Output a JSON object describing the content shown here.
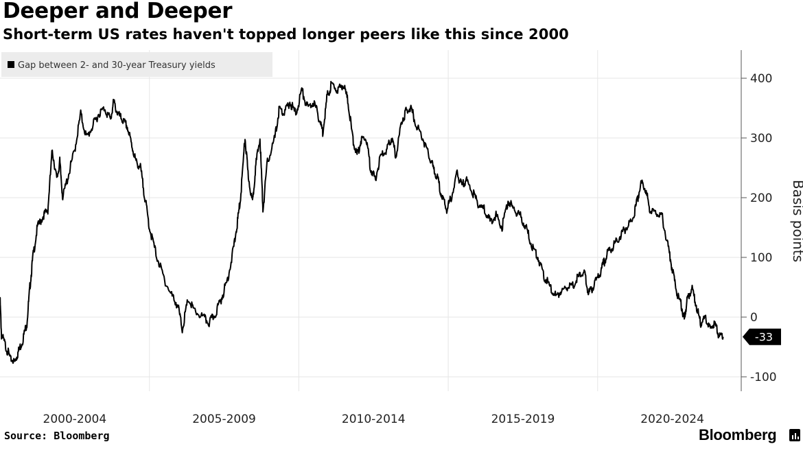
{
  "title": "Deeper and Deeper",
  "subtitle": "Short-term US rates haven't topped longer peers like this since 2000",
  "source": "Source: Bloomberg",
  "brand": "Bloomberg",
  "brand_icon": "bloomberg-terminal-icon",
  "colors": {
    "line": "#000000",
    "grid": "#e6e6e6",
    "legend_bg": "#ececec",
    "axis": "#555555"
  },
  "chart_data": {
    "type": "line",
    "title": "Deeper and Deeper",
    "subtitle": "Short-term US rates haven't topped longer peers like this since 2000",
    "ylabel": "Basis points",
    "y_axis_side": "right",
    "ylim": [
      -125,
      450
    ],
    "yticks": [
      -100,
      0,
      100,
      200,
      300,
      400
    ],
    "x_range": [
      2000.0,
      2024.3
    ],
    "x_ticks": [
      2000,
      2005,
      2010,
      2015,
      2020
    ],
    "x_tick_labels": [
      "2000-2004",
      "2005-2009",
      "2010-2014",
      "2015-2019",
      "2020-2024"
    ],
    "grid": true,
    "legend": {
      "placement": "top-left",
      "entries": [
        "Gap between 2- and 30-year Treasury yields"
      ]
    },
    "last_value_label": "-33",
    "series": [
      {
        "name": "Gap between 2- and 30-year Treasury yields",
        "color": "#000000",
        "points": [
          [
            2000.0,
            30
          ],
          [
            2000.05,
            -30
          ],
          [
            2000.2,
            -50
          ],
          [
            2000.35,
            -70
          ],
          [
            2000.5,
            -75
          ],
          [
            2000.6,
            -60
          ],
          [
            2000.75,
            -40
          ],
          [
            2000.9,
            -10
          ],
          [
            2001.0,
            50
          ],
          [
            2001.1,
            100
          ],
          [
            2001.25,
            150
          ],
          [
            2001.45,
            170
          ],
          [
            2001.6,
            180
          ],
          [
            2001.75,
            280
          ],
          [
            2001.9,
            230
          ],
          [
            2002.0,
            260
          ],
          [
            2002.1,
            200
          ],
          [
            2002.3,
            240
          ],
          [
            2002.5,
            280
          ],
          [
            2002.7,
            340
          ],
          [
            2002.9,
            300
          ],
          [
            2003.1,
            320
          ],
          [
            2003.3,
            340
          ],
          [
            2003.5,
            350
          ],
          [
            2003.7,
            330
          ],
          [
            2003.8,
            360
          ],
          [
            2003.95,
            340
          ],
          [
            2004.1,
            330
          ],
          [
            2004.25,
            320
          ],
          [
            2004.4,
            290
          ],
          [
            2004.55,
            260
          ],
          [
            2004.7,
            250
          ],
          [
            2004.85,
            200
          ],
          [
            2005.0,
            150
          ],
          [
            2005.2,
            110
          ],
          [
            2005.45,
            70
          ],
          [
            2005.7,
            40
          ],
          [
            2005.95,
            20
          ],
          [
            2006.1,
            -20
          ],
          [
            2006.3,
            30
          ],
          [
            2006.5,
            10
          ],
          [
            2006.8,
            0
          ],
          [
            2007.0,
            -10
          ],
          [
            2007.2,
            5
          ],
          [
            2007.4,
            30
          ],
          [
            2007.6,
            60
          ],
          [
            2007.8,
            110
          ],
          [
            2007.95,
            160
          ],
          [
            2008.05,
            200
          ],
          [
            2008.2,
            300
          ],
          [
            2008.3,
            240
          ],
          [
            2008.45,
            190
          ],
          [
            2008.55,
            250
          ],
          [
            2008.7,
            300
          ],
          [
            2008.8,
            180
          ],
          [
            2008.95,
            260
          ],
          [
            2009.2,
            300
          ],
          [
            2009.35,
            350
          ],
          [
            2009.5,
            340
          ],
          [
            2009.7,
            360
          ],
          [
            2009.9,
            340
          ],
          [
            2010.1,
            380
          ],
          [
            2010.3,
            350
          ],
          [
            2010.5,
            360
          ],
          [
            2010.7,
            330
          ],
          [
            2010.8,
            310
          ],
          [
            2010.95,
            370
          ],
          [
            2011.1,
            390
          ],
          [
            2011.3,
            380
          ],
          [
            2011.5,
            390
          ],
          [
            2011.65,
            360
          ],
          [
            2011.8,
            300
          ],
          [
            2011.95,
            270
          ],
          [
            2012.1,
            300
          ],
          [
            2012.25,
            300
          ],
          [
            2012.4,
            250
          ],
          [
            2012.55,
            230
          ],
          [
            2012.75,
            270
          ],
          [
            2012.95,
            280
          ],
          [
            2013.1,
            300
          ],
          [
            2013.25,
            270
          ],
          [
            2013.45,
            330
          ],
          [
            2013.6,
            345
          ],
          [
            2013.75,
            350
          ],
          [
            2013.95,
            320
          ],
          [
            2014.15,
            300
          ],
          [
            2014.35,
            270
          ],
          [
            2014.5,
            250
          ],
          [
            2014.65,
            230
          ],
          [
            2014.8,
            200
          ],
          [
            2014.95,
            180
          ],
          [
            2015.1,
            200
          ],
          [
            2015.3,
            240
          ],
          [
            2015.45,
            220
          ],
          [
            2015.6,
            230
          ],
          [
            2015.8,
            210
          ],
          [
            2016.0,
            190
          ],
          [
            2016.2,
            180
          ],
          [
            2016.4,
            160
          ],
          [
            2016.6,
            170
          ],
          [
            2016.8,
            150
          ],
          [
            2017.0,
            195
          ],
          [
            2017.2,
            180
          ],
          [
            2017.4,
            170
          ],
          [
            2017.6,
            150
          ],
          [
            2017.8,
            120
          ],
          [
            2018.0,
            100
          ],
          [
            2018.2,
            70
          ],
          [
            2018.4,
            50
          ],
          [
            2018.6,
            35
          ],
          [
            2018.8,
            45
          ],
          [
            2019.0,
            50
          ],
          [
            2019.2,
            55
          ],
          [
            2019.4,
            70
          ],
          [
            2019.55,
            75
          ],
          [
            2019.7,
            40
          ],
          [
            2019.85,
            50
          ],
          [
            2020.05,
            70
          ],
          [
            2020.2,
            90
          ],
          [
            2020.35,
            110
          ],
          [
            2020.55,
            120
          ],
          [
            2020.75,
            135
          ],
          [
            2020.95,
            150
          ],
          [
            2021.15,
            160
          ],
          [
            2021.3,
            190
          ],
          [
            2021.45,
            225
          ],
          [
            2021.6,
            215
          ],
          [
            2021.75,
            180
          ],
          [
            2021.95,
            175
          ],
          [
            2022.15,
            170
          ],
          [
            2022.35,
            120
          ],
          [
            2022.5,
            80
          ],
          [
            2022.65,
            40
          ],
          [
            2022.8,
            20
          ],
          [
            2022.9,
            -5
          ],
          [
            2023.0,
            30
          ],
          [
            2023.15,
            50
          ],
          [
            2023.3,
            20
          ],
          [
            2023.45,
            -10
          ],
          [
            2023.6,
            0
          ],
          [
            2023.75,
            -20
          ],
          [
            2023.9,
            -10
          ],
          [
            2024.05,
            -30
          ],
          [
            2024.2,
            -33
          ]
        ]
      }
    ]
  }
}
